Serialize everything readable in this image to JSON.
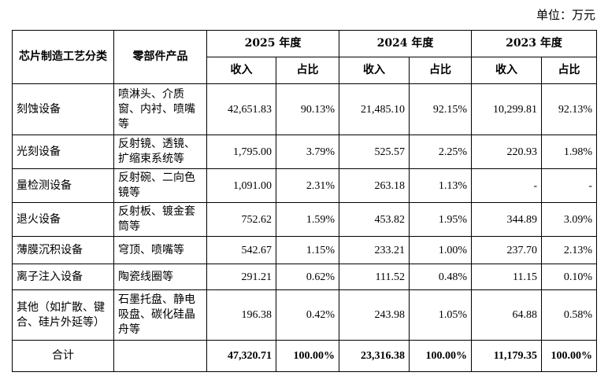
{
  "unit_label": "单位：万元",
  "headers": {
    "process": "芯片制造工艺分类",
    "parts": "零部件产品",
    "years": [
      "2025 年度",
      "2024 年度",
      "2023 年度"
    ],
    "revenue": "收入",
    "share": "占比"
  },
  "rows": [
    {
      "process": "刻蚀设备",
      "parts": "喷淋头、介质窗、内衬、喷嘴等",
      "vals": [
        "42,651.83",
        "90.13%",
        "21,485.10",
        "92.15%",
        "10,299.81",
        "92.13%"
      ]
    },
    {
      "process": "光刻设备",
      "parts": "反射镜、透镜、扩缩束系统等",
      "vals": [
        "1,795.00",
        "3.79%",
        "525.57",
        "2.25%",
        "220.93",
        "1.98%"
      ]
    },
    {
      "process": "量检测设备",
      "parts": "反射碗、二向色镜等",
      "vals": [
        "1,091.00",
        "2.31%",
        "263.18",
        "1.13%",
        "-",
        "-"
      ]
    },
    {
      "process": "退火设备",
      "parts": "反射板、镀金套筒等",
      "vals": [
        "752.62",
        "1.59%",
        "453.82",
        "1.95%",
        "344.89",
        "3.09%"
      ]
    },
    {
      "process": "薄膜沉积设备",
      "parts": "穹顶、喷嘴等",
      "vals": [
        "542.67",
        "1.15%",
        "233.21",
        "1.00%",
        "237.70",
        "2.13%"
      ]
    },
    {
      "process": "离子注入设备",
      "parts": "陶瓷线圈等",
      "vals": [
        "291.21",
        "0.62%",
        "111.52",
        "0.48%",
        "11.15",
        "0.10%"
      ]
    },
    {
      "process": "其他（如扩散、键合、硅片外延等）",
      "parts": "石墨托盘、静电吸盘、碳化硅晶舟等",
      "vals": [
        "196.38",
        "0.42%",
        "243.98",
        "1.05%",
        "64.88",
        "0.58%"
      ]
    }
  ],
  "total": {
    "label": "合计",
    "vals": [
      "47,320.71",
      "100.00%",
      "23,316.38",
      "100.00%",
      "11,179.35",
      "100.00%"
    ]
  }
}
